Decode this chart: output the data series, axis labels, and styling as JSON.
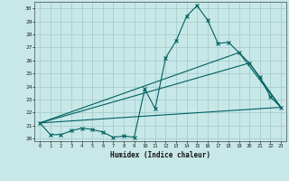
{
  "title": "",
  "xlabel": "Humidex (Indice chaleur)",
  "xlim": [
    -0.5,
    23.5
  ],
  "ylim": [
    19.8,
    30.5
  ],
  "yticks": [
    20,
    21,
    22,
    23,
    24,
    25,
    26,
    27,
    28,
    29,
    30
  ],
  "xticks": [
    0,
    1,
    2,
    3,
    4,
    5,
    6,
    7,
    8,
    9,
    10,
    11,
    12,
    13,
    14,
    15,
    16,
    17,
    18,
    19,
    20,
    21,
    22,
    23
  ],
  "background_color": "#c8e8e8",
  "grid_color": "#a0c8c8",
  "line_color": "#006060",
  "main_line": {
    "x": [
      0,
      1,
      2,
      3,
      4,
      5,
      6,
      7,
      8,
      9,
      10,
      11,
      12,
      13,
      14,
      15,
      16,
      17,
      18,
      19,
      20,
      21,
      22,
      23
    ],
    "y": [
      21.2,
      20.3,
      20.3,
      20.6,
      20.8,
      20.7,
      20.5,
      20.1,
      20.2,
      20.1,
      23.8,
      22.3,
      26.2,
      27.5,
      29.4,
      30.2,
      29.1,
      27.3,
      27.4,
      26.6,
      25.8,
      24.7,
      23.2,
      22.4
    ]
  },
  "straight_lines": [
    {
      "x": [
        0,
        23
      ],
      "y": [
        21.2,
        22.4
      ]
    },
    {
      "x": [
        0,
        20,
        23
      ],
      "y": [
        21.2,
        25.8,
        22.4
      ]
    },
    {
      "x": [
        0,
        19,
        23
      ],
      "y": [
        21.2,
        26.6,
        22.4
      ]
    }
  ]
}
